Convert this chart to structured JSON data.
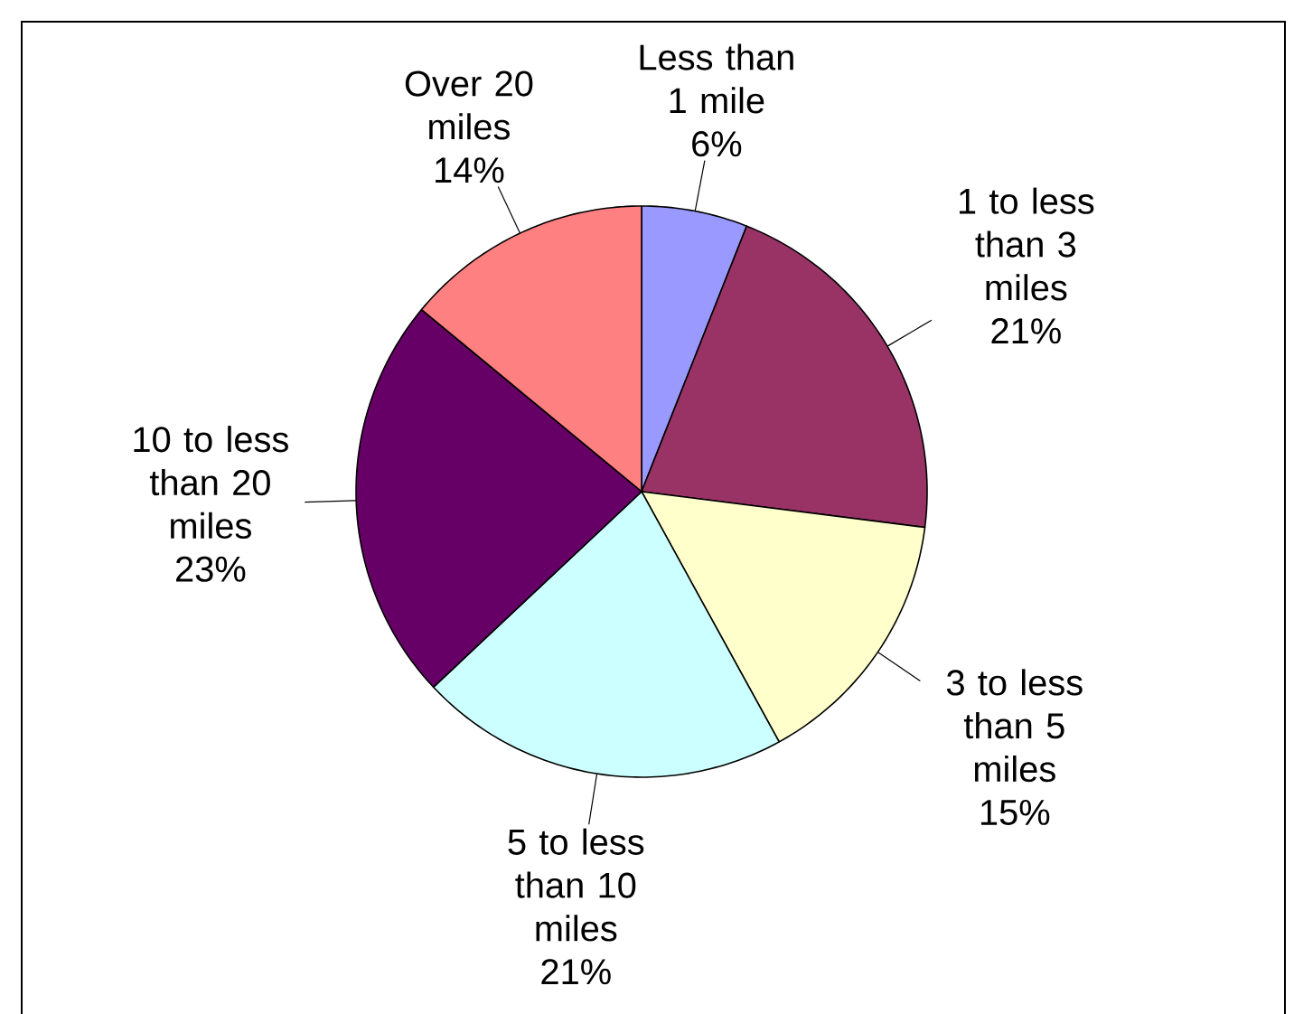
{
  "chart_data": {
    "type": "pie",
    "categories": [
      "Less than 1 mile",
      "1 to less than 3 miles",
      "3 to less than 5 miles",
      "5 to less than 10 miles",
      "10 to less than 20 miles",
      "Over 20 miles"
    ],
    "values": [
      6,
      21,
      15,
      21,
      23,
      14
    ],
    "value_labels": [
      "6%",
      "21%",
      "15%",
      "21%",
      "23%",
      "14%"
    ],
    "colors": [
      "#9999ff",
      "#993366",
      "#ffffcc",
      "#ccffff",
      "#660066",
      "#ff8080"
    ]
  }
}
